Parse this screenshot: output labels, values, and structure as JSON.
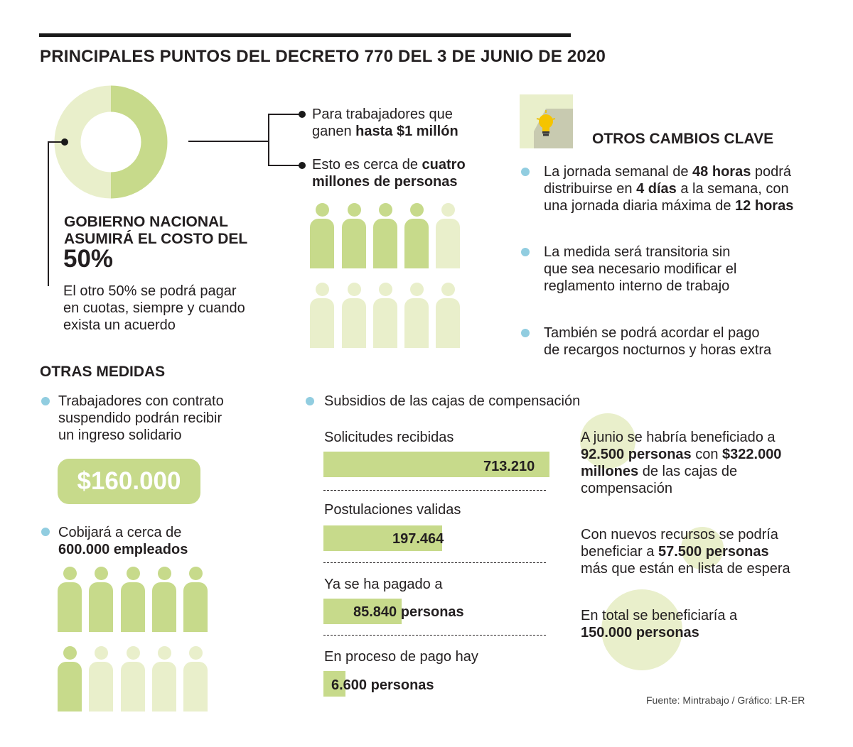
{
  "title": "PRINCIPALES PUNTOS DEL DECRETO 770 DEL 3 DE JUNIO DE 2020",
  "colors": {
    "green": "#c7da8b",
    "light_green": "#e9efcb",
    "bullet_blue": "#91cde0",
    "text": "#231f20"
  },
  "gobierno": {
    "heading_line1": "GOBIERNO NACIONAL",
    "heading_line2": "ASUMIRÁ EL COSTO DEL",
    "percent": "50%",
    "donut_share": 0.5,
    "note_line1": "El otro 50% se podrá pagar",
    "note_line2": "en cuotas, siempre y cuando",
    "note_line3": "exista un acuerdo"
  },
  "workers": {
    "item1_line1": "Para trabajadores que",
    "item1_line2_pre": "ganen ",
    "item1_line2_bold": "hasta $1 millón",
    "item2_line1_pre": "Esto es cerca de ",
    "item2_line1_bold": "cuatro",
    "item2_line2_bold": "millones de personas",
    "people_icon": "person-icon"
  },
  "otros_cambios": {
    "icon": "lightbulb-icon",
    "heading": "OTROS CAMBIOS CLAVE",
    "b1_l1_pre": "La jornada semanal de ",
    "b1_l1_bold": "48 horas",
    "b1_l1_post": " podrá",
    "b1_l2_pre": "distribuirse en ",
    "b1_l2_bold": "4 días",
    "b1_l2_post": " a la semana, con",
    "b1_l3_pre": "una jornada diaria máxima de ",
    "b1_l3_bold": "12 horas",
    "b2_l1": "La medida será transitoria sin",
    "b2_l2": "que sea necesario modificar el",
    "b2_l3": "reglamento interno de trabajo",
    "b3_l1": "También se podrá acordar el pago",
    "b3_l2": "de recargos nocturnos y horas extra"
  },
  "otras_medidas": {
    "heading": "OTRAS MEDIDAS",
    "b1_l1": "Trabajadores con contrato",
    "b1_l2": "suspendido podrán recibir",
    "b1_l3": "un ingreso solidario",
    "amount": "$160.000",
    "b2_l1": "Cobijará a cerca de",
    "b2_l2_bold": "600.000 empleados"
  },
  "subsidios": {
    "heading": "Subsidios de las cajas de compensación",
    "rows": [
      {
        "label": "Solicitudes recibidas",
        "value": "713.210",
        "count": 713210
      },
      {
        "label": "Postulaciones validas",
        "value": "197.464",
        "count": 197464
      },
      {
        "label": "Ya se ha pagado a",
        "value": "85.840 personas",
        "count": 85840
      },
      {
        "label": "En proceso de pago hay",
        "value": "6.600 personas",
        "count": 6600
      }
    ],
    "note1_l1": "A junio se habría beneficiado a",
    "note1_l2_bold1": "92.500 personas",
    "note1_l2_mid": " con ",
    "note1_l2_bold2": "$322.000",
    "note1_l3_bold": "millones",
    "note1_l3_post": " de las cajas de",
    "note1_l4": "compensación",
    "note2_l1": "Con nuevos recursos se podría",
    "note2_l2_pre": "beneficiar a ",
    "note2_l2_bold": "57.500 personas",
    "note2_l3": "más que están en lista de espera",
    "note3_l1": "En total se beneficiaría a",
    "note3_l2_bold": "150.000 personas"
  },
  "source": "Fuente: Mintrabajo / Gráfico: LR-ER"
}
